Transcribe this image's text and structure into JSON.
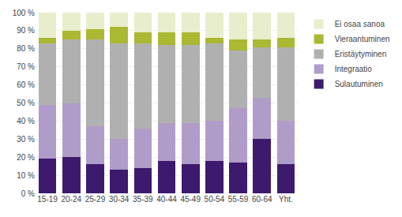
{
  "chart_data": {
    "type": "bar",
    "stacked": true,
    "categories": [
      "15-19",
      "20-24",
      "25-29",
      "30-34",
      "35-39",
      "40-44",
      "45-49",
      "50-54",
      "55-59",
      "60-64",
      "Yht."
    ],
    "series": [
      {
        "name": "Sulautuminen",
        "color": "#3d1a6e",
        "values": [
          19,
          20,
          16,
          13,
          14,
          18,
          16,
          18,
          17,
          30,
          16
        ]
      },
      {
        "name": "Integraatio",
        "color": "#b09cc8",
        "values": [
          30,
          30,
          21,
          17,
          22,
          21,
          23,
          22,
          30,
          23,
          24
        ]
      },
      {
        "name": "Eristäytyminen",
        "color": "#b0b0b0",
        "values": [
          34,
          35,
          48,
          53,
          47,
          43,
          43,
          43,
          32,
          28,
          41
        ]
      },
      {
        "name": "Vieraantuminen",
        "color": "#aab832",
        "values": [
          3,
          5,
          6,
          9,
          6,
          7,
          7,
          3,
          6,
          4,
          5
        ]
      },
      {
        "name": "Ei osaa sanoa",
        "color": "#e8edcc",
        "values": [
          14,
          10,
          9,
          8,
          11,
          11,
          11,
          14,
          15,
          15,
          14
        ]
      }
    ],
    "ylim": [
      0,
      100
    ],
    "yticks": [
      {
        "value": 0,
        "label": "0 %"
      },
      {
        "value": 10,
        "label": "10 %"
      },
      {
        "value": 20,
        "label": "20 %"
      },
      {
        "value": 30,
        "label": "30 %"
      },
      {
        "value": 40,
        "label": "40 %"
      },
      {
        "value": 50,
        "label": "50 %"
      },
      {
        "value": 60,
        "label": "60 %"
      },
      {
        "value": 70,
        "label": "70 %"
      },
      {
        "value": 80,
        "label": "80 %"
      },
      {
        "value": 90,
        "label": "90 %"
      },
      {
        "value": 100,
        "label": "100 %"
      }
    ],
    "grid": true,
    "legend": "right"
  }
}
